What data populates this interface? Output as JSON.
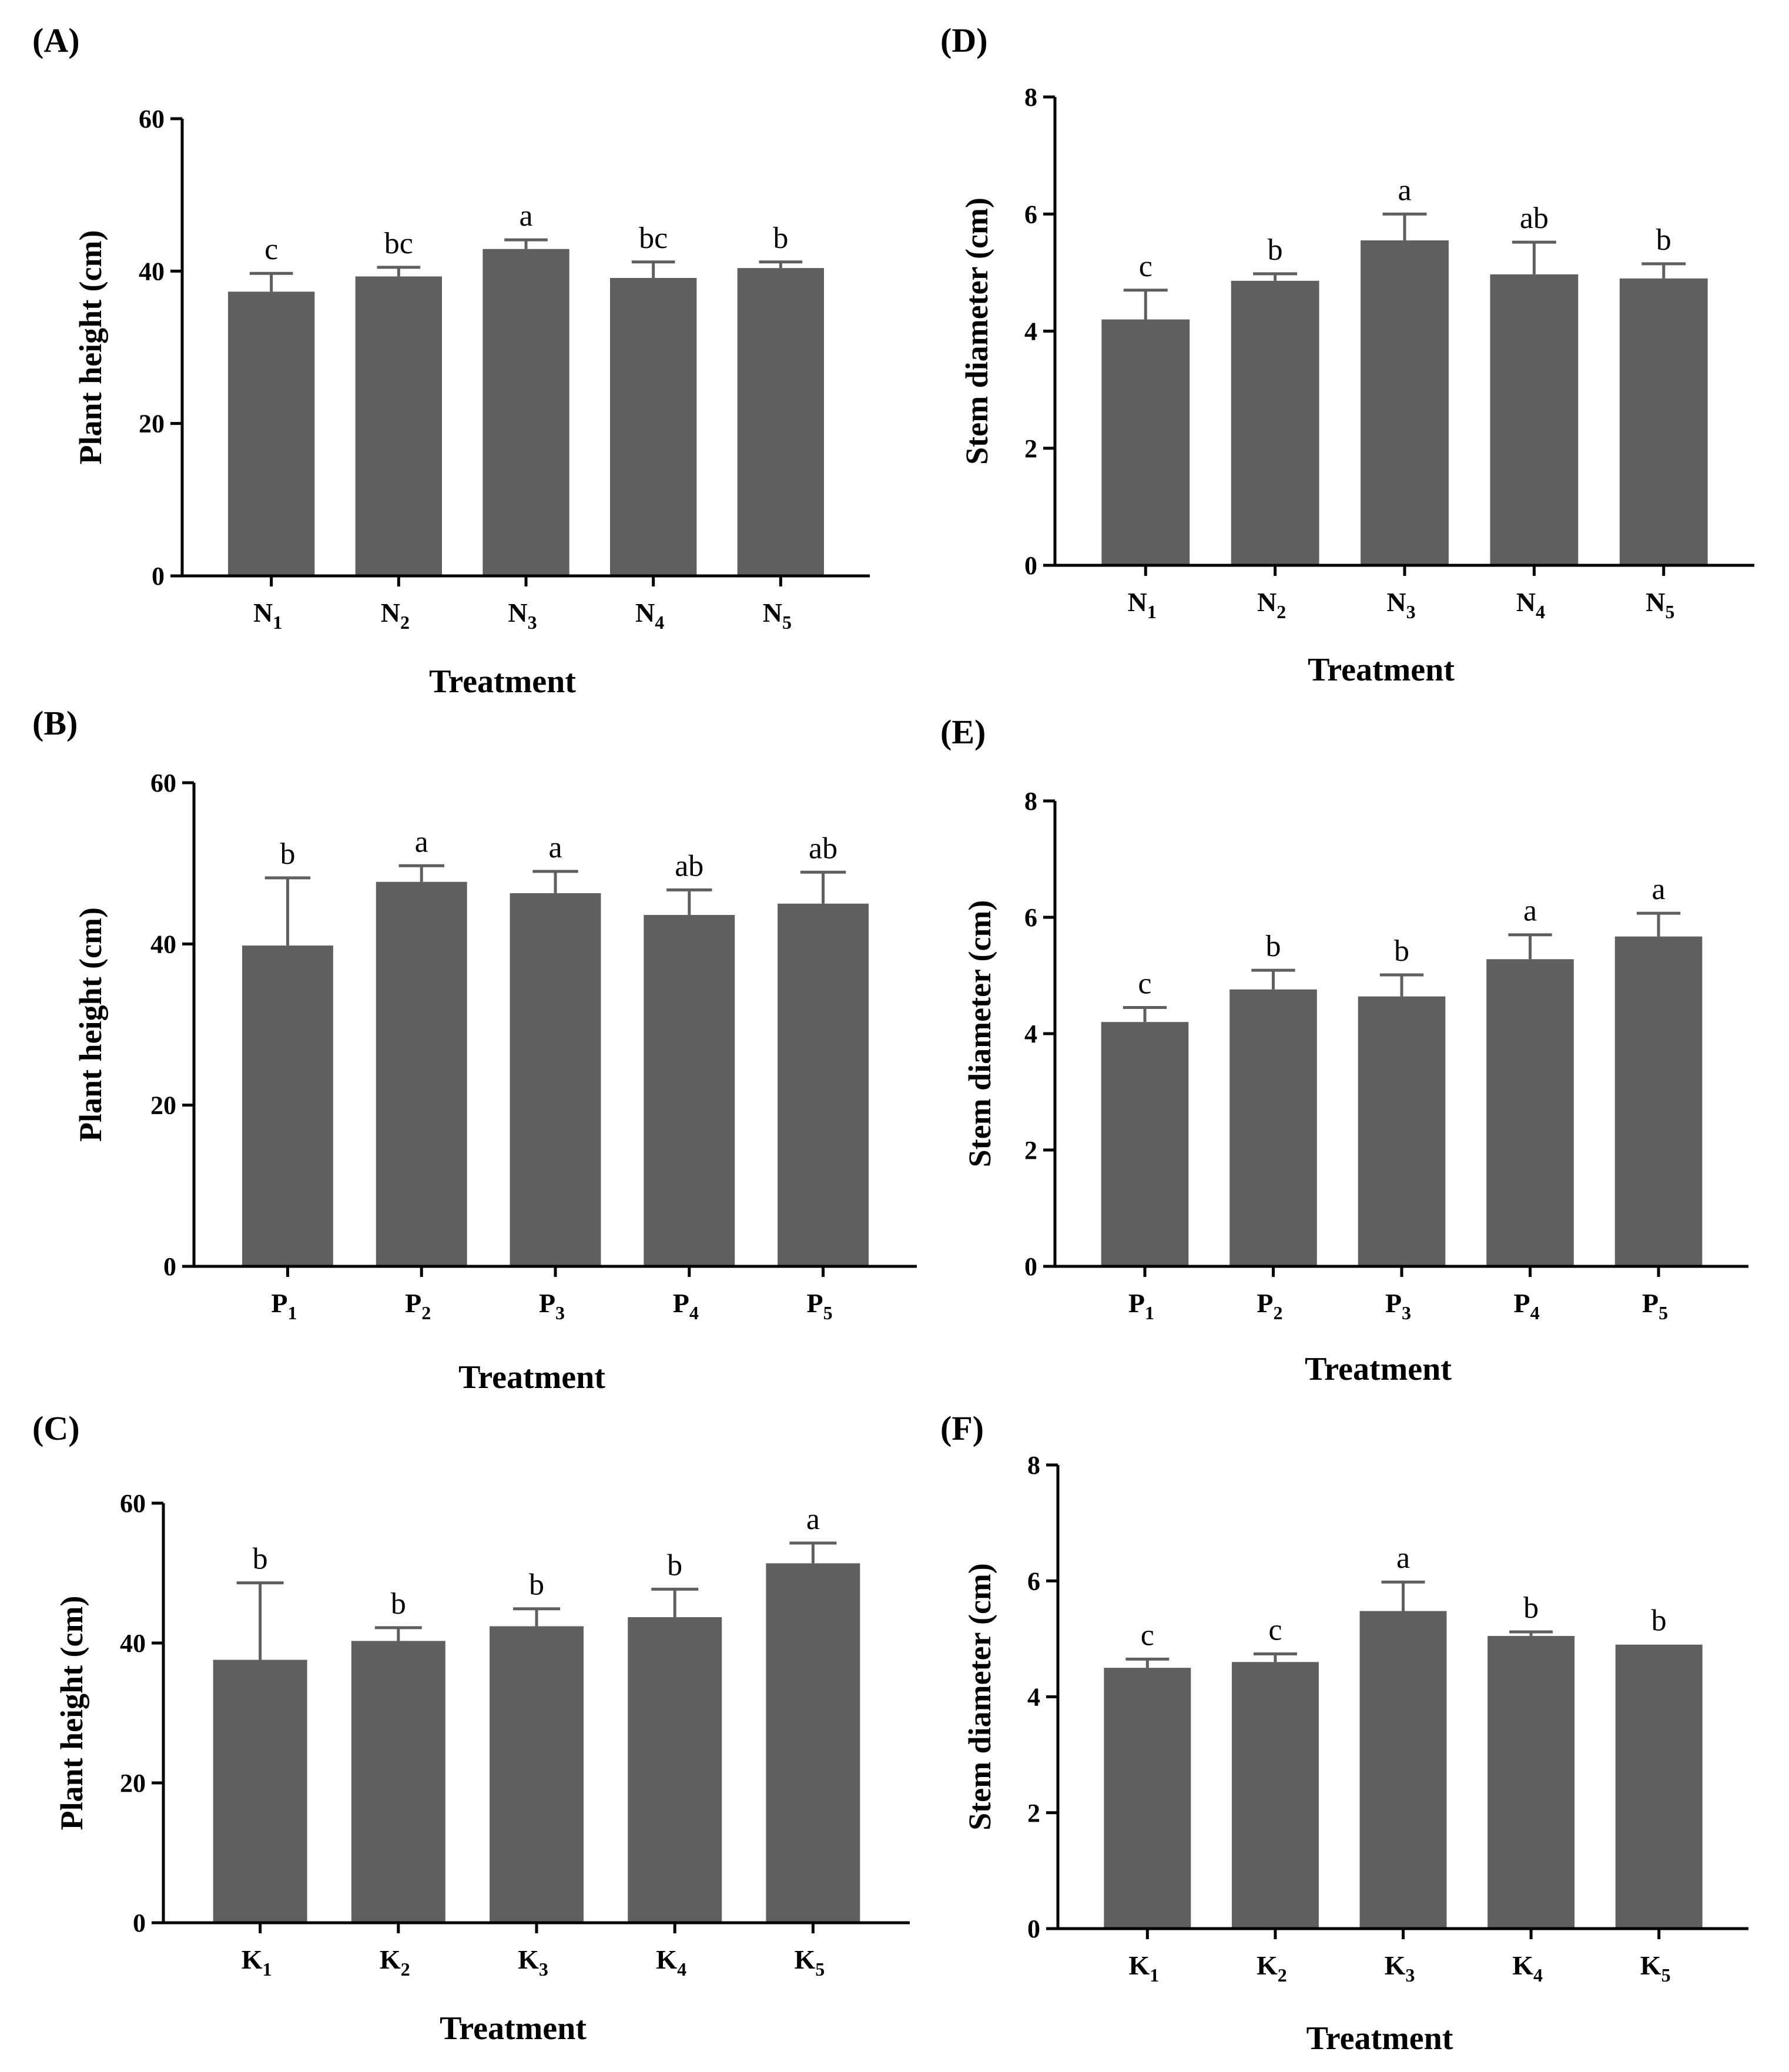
{
  "chart_data": [
    {
      "id": "A",
      "type": "bar",
      "panel_label": "(A)",
      "categories": [
        {
          "base": "N",
          "sub": "1"
        },
        {
          "base": "N",
          "sub": "2"
        },
        {
          "base": "N",
          "sub": "3"
        },
        {
          "base": "N",
          "sub": "4"
        },
        {
          "base": "N",
          "sub": "5"
        }
      ],
      "values": [
        37.3,
        39.3,
        42.9,
        39.1,
        40.4
      ],
      "errors": [
        2.4,
        1.2,
        1.2,
        2.1,
        0.8
      ],
      "significance": [
        "c",
        "bc",
        "a",
        "bc",
        "b"
      ],
      "ylabel": "Plant height (cm)",
      "xlabel": "Treatment",
      "ylim": [
        0,
        60
      ],
      "yticks": [
        0,
        20,
        40,
        60
      ]
    },
    {
      "id": "B",
      "type": "bar",
      "panel_label": "(B)",
      "categories": [
        {
          "base": "P",
          "sub": "1"
        },
        {
          "base": "P",
          "sub": "2"
        },
        {
          "base": "P",
          "sub": "3"
        },
        {
          "base": "P",
          "sub": "4"
        },
        {
          "base": "P",
          "sub": "5"
        }
      ],
      "values": [
        39.8,
        47.7,
        46.3,
        43.6,
        45.0
      ],
      "errors": [
        8.4,
        2.0,
        2.7,
        3.1,
        3.9
      ],
      "significance": [
        "b",
        "a",
        "a",
        "ab",
        "ab"
      ],
      "ylabel": "Plant height (cm)",
      "xlabel": "Treatment",
      "ylim": [
        0,
        60
      ],
      "yticks": [
        0,
        20,
        40,
        60
      ]
    },
    {
      "id": "C",
      "type": "bar",
      "panel_label": "(C)",
      "categories": [
        {
          "base": "K",
          "sub": "1"
        },
        {
          "base": "K",
          "sub": "2"
        },
        {
          "base": "K",
          "sub": "3"
        },
        {
          "base": "K",
          "sub": "4"
        },
        {
          "base": "K",
          "sub": "5"
        }
      ],
      "values": [
        37.6,
        40.3,
        42.4,
        43.7,
        51.4
      ],
      "errors": [
        11.0,
        1.9,
        2.5,
        4.0,
        2.9
      ],
      "significance": [
        "b",
        "b",
        "b",
        "b",
        "a"
      ],
      "ylabel": "Plant height (cm)",
      "xlabel": "Treatment",
      "ylim": [
        0,
        60
      ],
      "yticks": [
        0,
        20,
        40,
        60
      ]
    },
    {
      "id": "D",
      "type": "bar",
      "panel_label": "(D)",
      "categories": [
        {
          "base": "N",
          "sub": "1"
        },
        {
          "base": "N",
          "sub": "2"
        },
        {
          "base": "N",
          "sub": "3"
        },
        {
          "base": "N",
          "sub": "4"
        },
        {
          "base": "N",
          "sub": "5"
        }
      ],
      "values": [
        4.2,
        4.86,
        5.55,
        4.97,
        4.9
      ],
      "errors": [
        0.5,
        0.12,
        0.45,
        0.55,
        0.25
      ],
      "significance": [
        "c",
        "b",
        "a",
        "ab",
        "b"
      ],
      "ylabel": "Stem diameter (cm)",
      "xlabel": "Treatment",
      "ylim": [
        0,
        8
      ],
      "yticks": [
        0,
        2,
        4,
        6,
        8
      ]
    },
    {
      "id": "E",
      "type": "bar",
      "panel_label": "(E)",
      "categories": [
        {
          "base": "P",
          "sub": "1"
        },
        {
          "base": "P",
          "sub": "2"
        },
        {
          "base": "P",
          "sub": "3"
        },
        {
          "base": "P",
          "sub": "4"
        },
        {
          "base": "P",
          "sub": "5"
        }
      ],
      "values": [
        4.2,
        4.76,
        4.64,
        5.28,
        5.67
      ],
      "errors": [
        0.25,
        0.33,
        0.37,
        0.42,
        0.4
      ],
      "significance": [
        "c",
        "b",
        "b",
        "a",
        "a"
      ],
      "ylabel": "Stem diameter (cm)",
      "xlabel": "Treatment",
      "ylim": [
        0,
        8
      ],
      "yticks": [
        0,
        2,
        4,
        6,
        8
      ]
    },
    {
      "id": "F",
      "type": "bar",
      "panel_label": "(F)",
      "categories": [
        {
          "base": "K",
          "sub": "1"
        },
        {
          "base": "K",
          "sub": "2"
        },
        {
          "base": "K",
          "sub": "3"
        },
        {
          "base": "K",
          "sub": "4"
        },
        {
          "base": "K",
          "sub": "5"
        }
      ],
      "values": [
        4.5,
        4.6,
        5.48,
        5.05,
        4.9
      ],
      "errors": [
        0.15,
        0.14,
        0.5,
        0.07,
        0.0
      ],
      "significance": [
        "c",
        "c",
        "a",
        "b",
        "b"
      ],
      "ylabel": "Stem diameter (cm)",
      "xlabel": "Treatment",
      "ylim": [
        0,
        8
      ],
      "yticks": [
        0,
        2,
        4,
        6,
        8
      ]
    }
  ]
}
